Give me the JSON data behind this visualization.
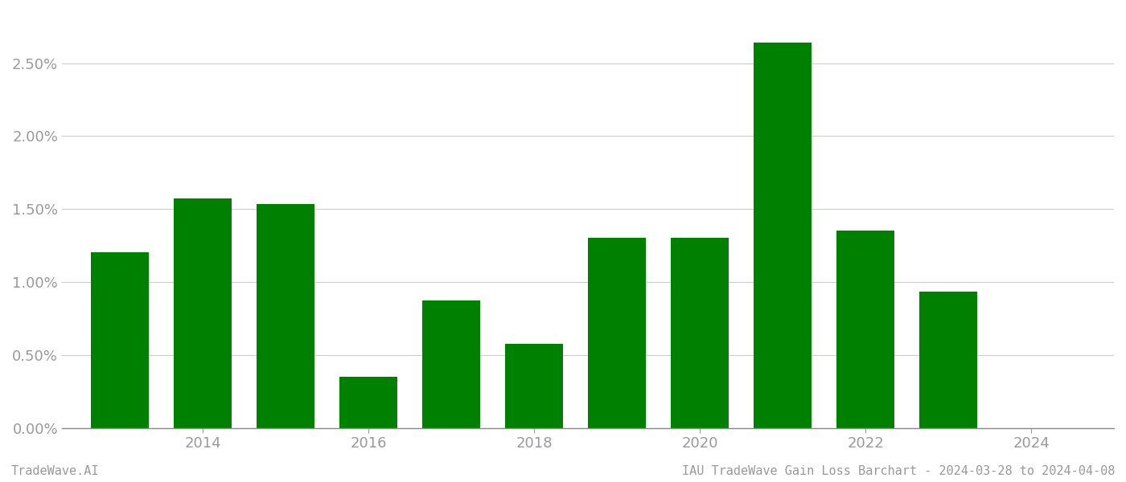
{
  "years": [
    2013,
    2014,
    2015,
    2016,
    2017,
    2018,
    2019,
    2020,
    2021,
    2022,
    2023
  ],
  "values": [
    1.205,
    1.575,
    1.535,
    0.352,
    0.872,
    0.578,
    1.3,
    1.305,
    2.64,
    1.353,
    0.935
  ],
  "bar_color": "#008000",
  "background_color": "#ffffff",
  "grid_color": "#cccccc",
  "axis_color": "#888888",
  "tick_label_color": "#999999",
  "ylim": [
    0,
    2.85
  ],
  "yticks": [
    0.0,
    0.5,
    1.0,
    1.5,
    2.0,
    2.5
  ],
  "xtick_positions": [
    2014,
    2016,
    2018,
    2020,
    2022,
    2024
  ],
  "xtick_labels": [
    "2014",
    "2016",
    "2018",
    "2020",
    "2022",
    "2024"
  ],
  "xlim_left": 2012.3,
  "xlim_right": 2025.0,
  "footer_left": "TradeWave.AI",
  "footer_right": "IAU TradeWave Gain Loss Barchart - 2024-03-28 to 2024-04-08",
  "footer_fontsize": 11,
  "bar_width": 0.7
}
